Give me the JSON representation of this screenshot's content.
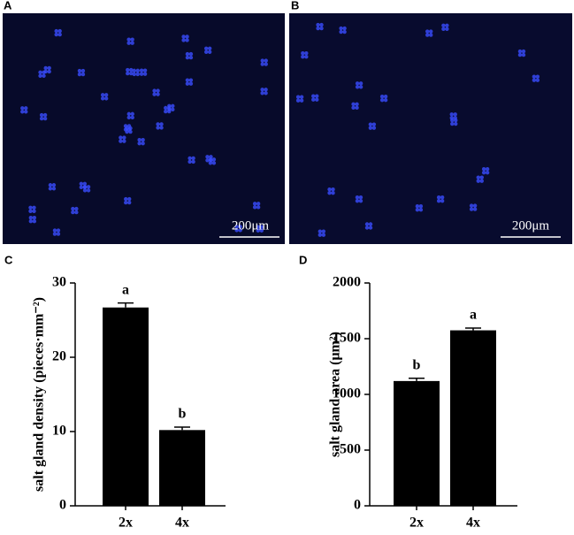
{
  "panels": [
    {
      "label": "A",
      "scale_bar": "200μm"
    },
    {
      "label": "B",
      "scale_bar": "200μm"
    }
  ],
  "chart_data": [
    {
      "type": "bar",
      "panel": "C",
      "ylabel": "salt gland density (pieces·mm⁻²)",
      "categories": [
        "2x",
        "4x"
      ],
      "values": [
        26.7,
        10.2
      ],
      "errors": [
        0.6,
        0.4
      ],
      "annotations": [
        "a",
        "b"
      ],
      "color": "#000000",
      "ylim": [
        0,
        30
      ],
      "yticks": [
        0,
        10,
        20,
        30
      ]
    },
    {
      "type": "bar",
      "panel": "D",
      "ylabel": "salt gland area (μm²)",
      "categories": [
        "2x",
        "4x"
      ],
      "values": [
        1120,
        1575
      ],
      "errors": [
        25,
        20
      ],
      "annotations": [
        "b",
        "a"
      ],
      "color": "#000000",
      "ylim": [
        0,
        2000
      ],
      "yticks": [
        0,
        500,
        1000,
        1500,
        2000
      ]
    }
  ]
}
